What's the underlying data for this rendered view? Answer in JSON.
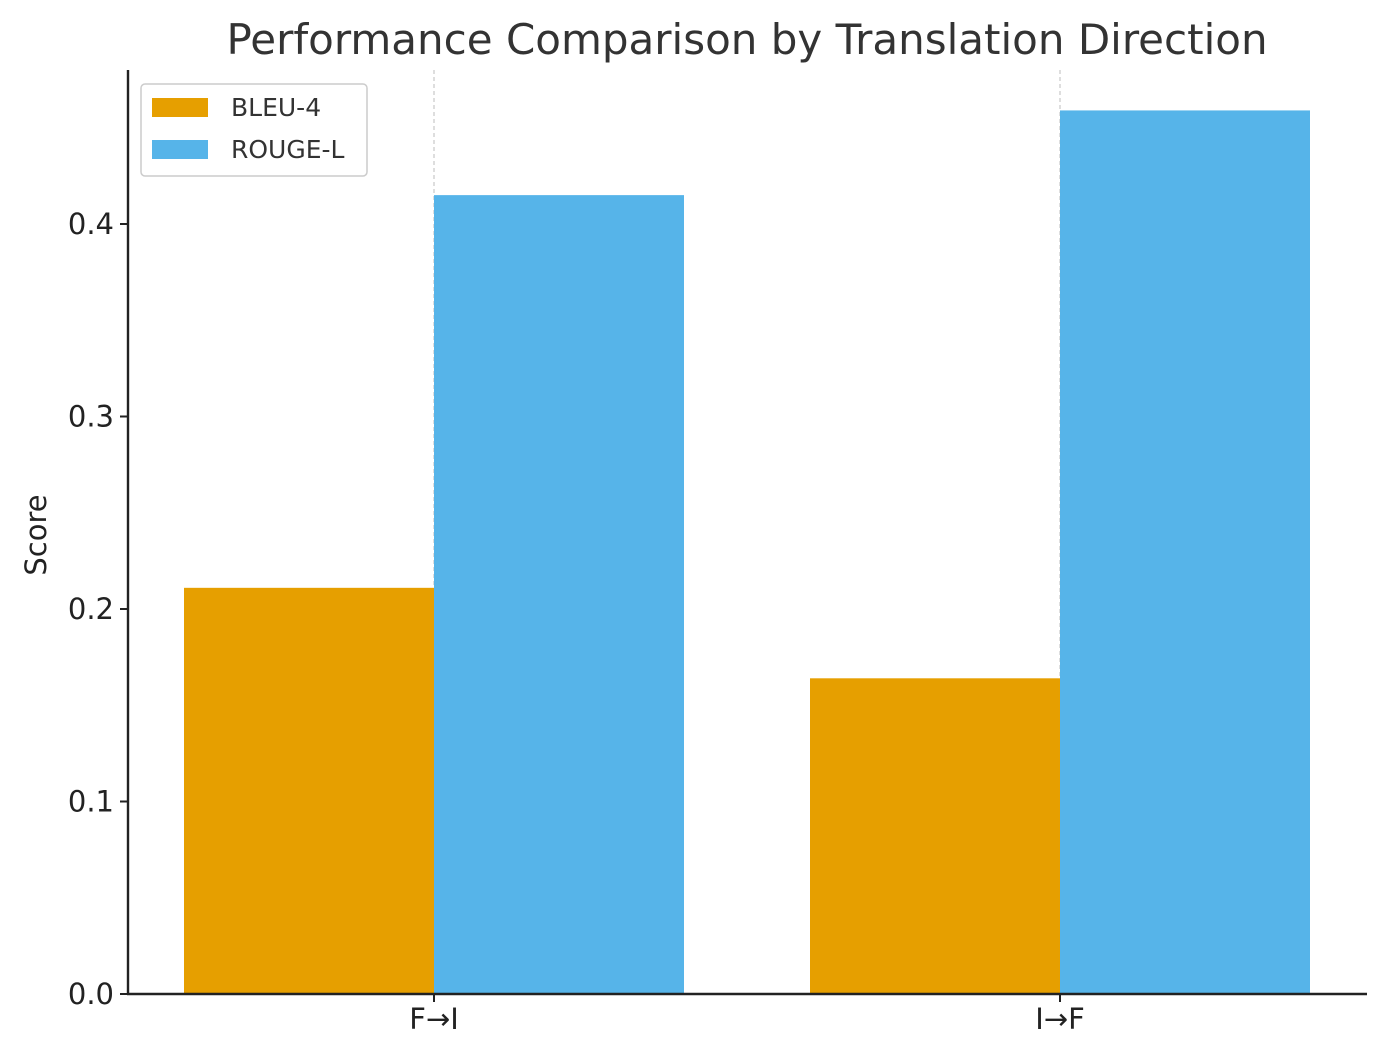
{
  "chart_data": {
    "type": "bar",
    "title": "Performance Comparison by Translation Direction",
    "xlabel": "",
    "ylabel": "Score",
    "categories": [
      "F→I",
      "I→F"
    ],
    "series": [
      {
        "name": "BLEU-4",
        "values": [
          0.211,
          0.164
        ],
        "color": "#E69F00"
      },
      {
        "name": "ROUGE-L",
        "values": [
          0.415,
          0.459
        ],
        "color": "#56B4E9"
      }
    ],
    "ylim": [
      0,
      0.48
    ],
    "yticks": [
      0.0,
      0.1,
      0.2,
      0.3,
      0.4
    ],
    "ytick_labels": [
      "0.0",
      "0.1",
      "0.2",
      "0.3",
      "0.4"
    ],
    "grid": "x-dashed",
    "legend_position": "top-left"
  }
}
